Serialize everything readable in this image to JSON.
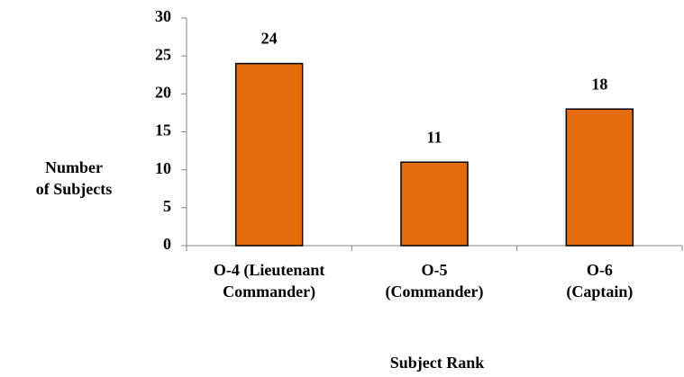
{
  "chart_data": {
    "type": "bar",
    "categories": [
      "O-4 (Lieutenant\nCommander)",
      "O-5\n(Commander)",
      "O-6 (Captain)"
    ],
    "values": [
      24,
      11,
      18
    ],
    "color": "#e46c0a",
    "ylabel": "Number\nof Subjects",
    "xlabel": "Subject Rank",
    "ylim": [
      0,
      30
    ],
    "yticks": [
      0,
      5,
      10,
      15,
      20,
      25,
      30
    ],
    "grid": false
  }
}
